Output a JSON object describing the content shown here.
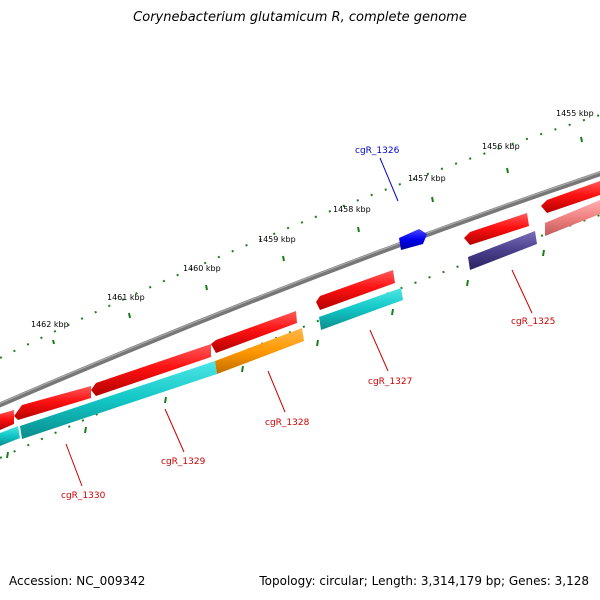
{
  "title": "Corynebacterium glutamicum R, complete genome",
  "footer": {
    "accession": "Accession: NC_009342",
    "topology": "Topology: circular; Length: 3,314,179 bp; Genes: 3,128"
  },
  "ruler_labels": [
    "1455 kbp",
    "1456 kbp",
    "1457 kbp",
    "1458 kbp",
    "1459 kbp",
    "1460 kbp",
    "1461 kbp",
    "1462 kbp"
  ],
  "genes": [
    {
      "name": "cgR_1325",
      "color": "#cc0000"
    },
    {
      "name": "cgR_1326",
      "color": "#0000cc"
    },
    {
      "name": "cgR_1327",
      "color": "#cc0000"
    },
    {
      "name": "cgR_1328",
      "color": "#cc0000"
    },
    {
      "name": "cgR_1329",
      "color": "#cc0000"
    },
    {
      "name": "cgR_1330",
      "color": "#cc0000"
    }
  ],
  "colors": {
    "backbone": "#808080",
    "tick": "#1a7f1a",
    "red_feature": "#ee1111",
    "pink_feature": "#f08080",
    "cyan_feature": "#14c8c8",
    "orange_feature": "#ff9900",
    "navy_feature": "#4a3f8c",
    "blue_feature": "#0000ee"
  }
}
